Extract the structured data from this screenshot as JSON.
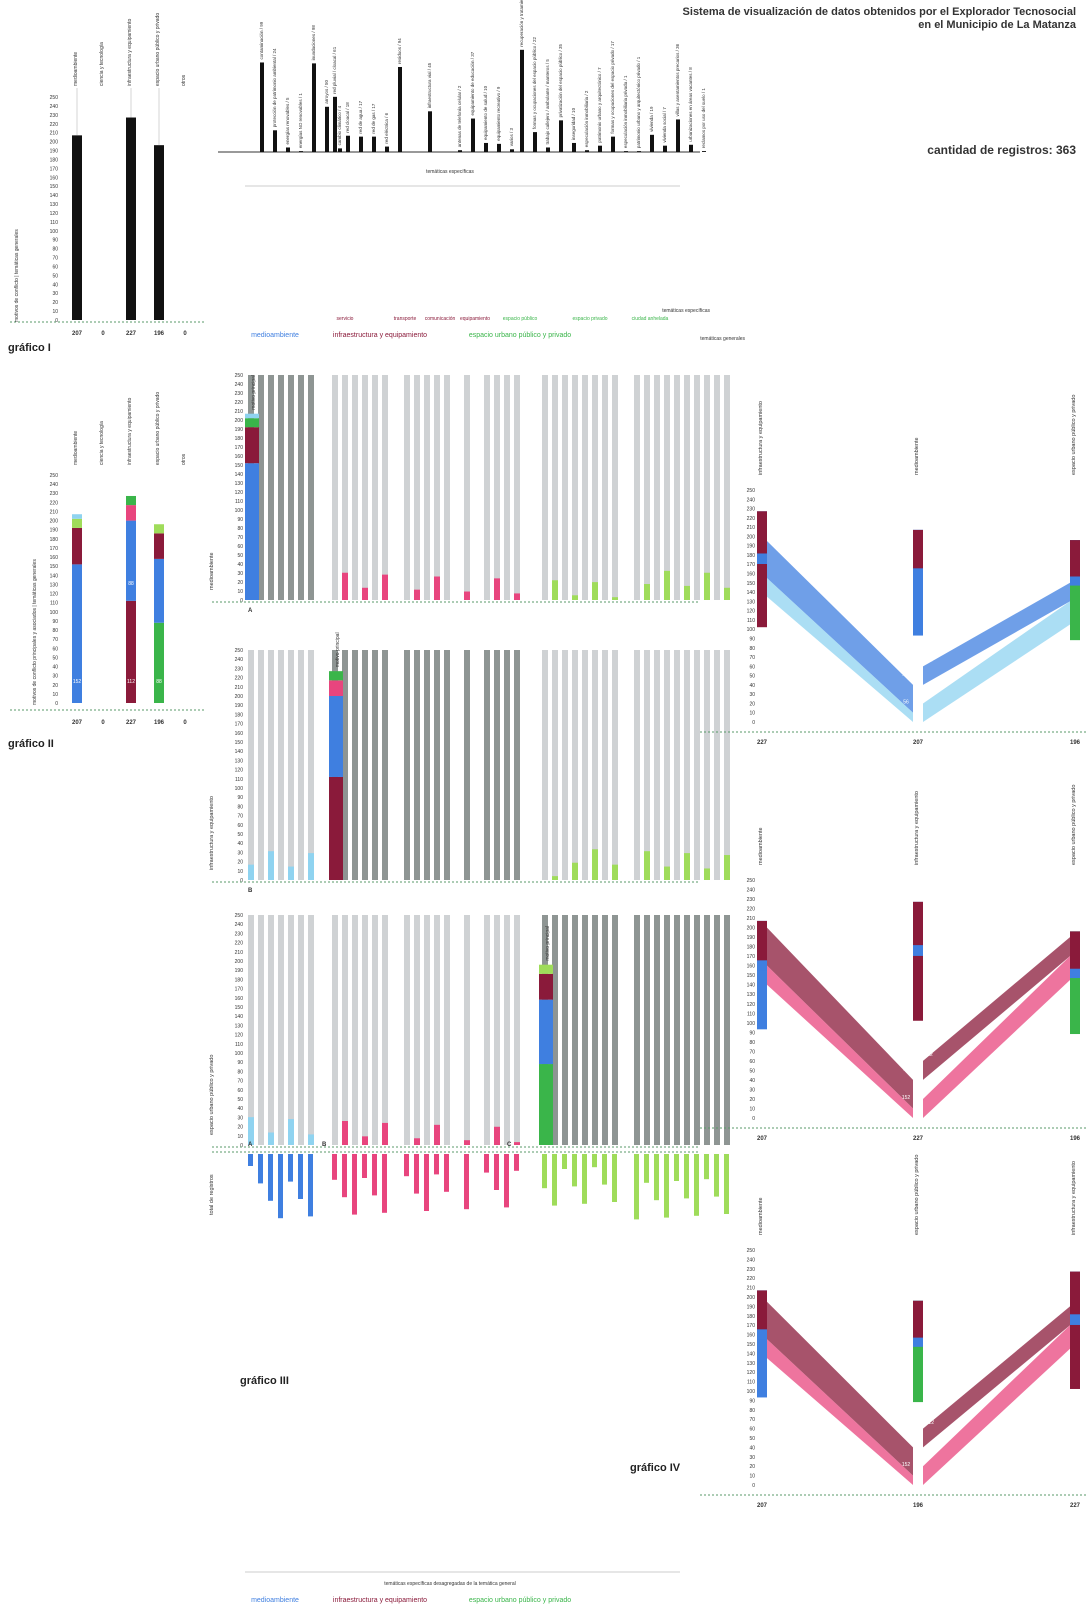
{
  "header": {
    "title_line1": "Sistema de visualización de datos obtenidos por el Explorador Tecnosocial",
    "title_line2": "en el Municipio de La Matanza",
    "count_label": "cantidad de registros: 363"
  },
  "labels": {
    "grafico_i": "gráfico I",
    "grafico_ii": "gráfico II",
    "grafico_iii": "gráfico III",
    "grafico_iv": "gráfico IV",
    "motivos_conflicto": "motivos de conflicto",
    "tematicas_generales": "temáticas generales",
    "motivos_principales": "motivos de conflicto principales y asociados",
    "tematicas_especificas": "temáticas específicas",
    "tematicas_desagregadas": "temáticas específicas desagregadas de la temática general",
    "motivo_principal": "motivo principal",
    "total_registros": "total de registros",
    "panel_a": "A",
    "panel_b": "B",
    "panel_c": "C"
  },
  "colors": {
    "medioambiente": "#3f7fe0",
    "medioambiente_light": "#8fd3f0",
    "infraestructura": "#8a1a3a",
    "infraestructura_light": "#e8457e",
    "espacio": "#3ab54a",
    "espacio_light": "#9fdc5a",
    "gray_bar": "#cfd2d4",
    "dark_bar": "#8e9593",
    "black": "#111111"
  },
  "general_groups": [
    {
      "name": "medioambiente",
      "color": "#3f7fe0"
    },
    {
      "name": "infraestructura y equipamiento",
      "color": "#8a1a3a"
    },
    {
      "name": "espacio urbano público y privado",
      "color": "#3ab54a"
    }
  ],
  "subgroups": [
    {
      "name": "servicio",
      "color": "#8a1a3a"
    },
    {
      "name": "transporte",
      "color": "#8a1a3a"
    },
    {
      "name": "comunicación",
      "color": "#8a1a3a"
    },
    {
      "name": "equipamiento",
      "color": "#8a1a3a"
    },
    {
      "name": "espacio público",
      "color": "#3ab54a"
    },
    {
      "name": "espacio privado",
      "color": "#3ab54a"
    },
    {
      "name": "ciudad anhelada",
      "color": "#3ab54a"
    }
  ],
  "chart_data": [
    {
      "name": "gráfico I",
      "type": "bar",
      "categories": [
        "medioambiente",
        "ciencia y tecnología",
        "infraestructura y equipamiento",
        "espacio urbano público y privado",
        "otros"
      ],
      "values": [
        207,
        0,
        227,
        196,
        0
      ],
      "ylim": [
        0,
        250
      ],
      "yticks": [
        0,
        10,
        20,
        30,
        40,
        50,
        60,
        70,
        80,
        90,
        100,
        110,
        120,
        130,
        140,
        150,
        160,
        170,
        180,
        190,
        200,
        210,
        220,
        230,
        240,
        250
      ],
      "ylabel": "motivos de conflicto | temáticas generales"
    },
    {
      "name": "gráfico II",
      "type": "bar",
      "stacked": true,
      "categories": [
        "medioambiente",
        "ciencia y tecnología",
        "infraestructura y equipamiento",
        "espacio urbano público y privado",
        "otros"
      ],
      "totals": [
        207,
        0,
        227,
        196,
        0
      ],
      "segment_labels": [
        [
          "152",
          "",
          "",
          ""
        ],
        [],
        [
          "112",
          "88",
          "",
          ""
        ],
        [
          "88",
          "",
          "",
          ""
        ],
        []
      ],
      "ylim": [
        0,
        250
      ],
      "ylabel": "motivos de conflicto principales y asociados | temáticas generales"
    },
    {
      "name": "temáticas específicas",
      "type": "bar",
      "groups": [
        {
          "group": "medioambiente",
          "items": [
            {
              "label": "contaminación",
              "value": 99
            },
            {
              "label": "protección de patrimonio ambiental",
              "value": 24
            },
            {
              "label": "energías renovables",
              "value": 5
            },
            {
              "label": "energías NO renovables",
              "value": 1
            },
            {
              "label": "inundaciones",
              "value": 98
            },
            {
              "label": "arroyos",
              "value": 50
            },
            {
              "label": "cambio climático",
              "value": 4
            }
          ]
        },
        {
          "group": "infraestructura y equipamiento",
          "items": [
            {
              "label": "red pluvial / cloacal",
              "value": 61
            },
            {
              "label": "red cloacal",
              "value": 18
            },
            {
              "label": "red de agua",
              "value": 17
            },
            {
              "label": "red de gas",
              "value": 17
            },
            {
              "label": "red eléctrica",
              "value": 6
            },
            {
              "label": "residuos",
              "value": 94
            },
            {
              "label": "infraestructura vial",
              "value": 45
            },
            {
              "label": "antenas de telefonía celular",
              "value": 2
            },
            {
              "label": "equipamiento de educación",
              "value": 37
            },
            {
              "label": "equipamiento de salud",
              "value": 10
            },
            {
              "label": "equipamiento recreativo",
              "value": 9
            },
            {
              "label": "varios",
              "value": 3
            }
          ]
        },
        {
          "group": "espacio urbano público y privado",
          "items": [
            {
              "label": "recuperación y tratamiento del espacio público",
              "value": 113
            },
            {
              "label": "formas y ocupaciones del espacio público",
              "value": 22
            },
            {
              "label": "trabajo callejero / ambulante / manteros",
              "value": 5
            },
            {
              "label": "privatización del espacio público",
              "value": 35
            },
            {
              "label": "inseguridad",
              "value": 10
            },
            {
              "label": "especulación inmobiliaria",
              "value": 2
            },
            {
              "label": "patrimonio urbano y arquitectónico",
              "value": 7
            },
            {
              "label": "formas y ocupaciones del espacio privado",
              "value": 17
            },
            {
              "label": "especulación inmobiliaria privada",
              "value": 1
            },
            {
              "label": "patrimonio urbano y arquitectónico privado",
              "value": 1
            },
            {
              "label": "vivienda",
              "value": 19
            },
            {
              "label": "vivienda social",
              "value": 7
            },
            {
              "label": "villas y asentamientos precarios",
              "value": 36
            },
            {
              "label": "urbanizaciones en áreas vacantes",
              "value": 8
            },
            {
              "label": "reclamos por uso del suelo",
              "value": 1
            }
          ]
        }
      ]
    },
    {
      "name": "gráfico IV",
      "type": "parallel",
      "panels": [
        {
          "order": [
            "infraestructura y equipamiento",
            "medioambiente",
            "espacio urbano público y privado"
          ],
          "totals": [
            227,
            207,
            196
          ],
          "flow_labels": [
            "56",
            "40",
            "152",
            "88",
            "112"
          ]
        },
        {
          "order": [
            "medioambiente",
            "infraestructura y equipamiento",
            "espacio urbano público y privado"
          ],
          "totals": [
            207,
            227,
            196
          ],
          "flow_labels": [
            "152",
            "40",
            "24",
            "22",
            "88",
            "112"
          ]
        },
        {
          "order": [
            "medioambiente",
            "espacio urbano público y privado",
            "infraestructura y equipamiento"
          ],
          "totals": [
            207,
            196,
            227
          ],
          "flow_labels": [
            "152",
            "88",
            "19",
            "112"
          ]
        }
      ],
      "ylim": [
        0,
        350
      ]
    }
  ]
}
